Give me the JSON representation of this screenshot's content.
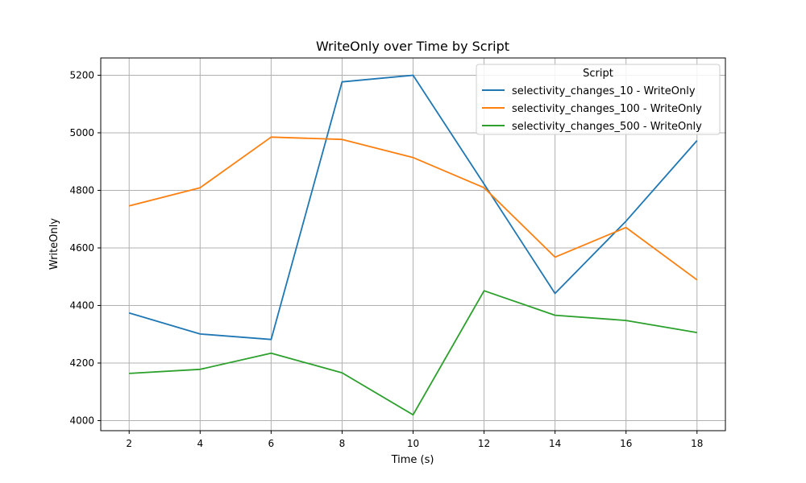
{
  "chart_data": {
    "type": "line",
    "title": "WriteOnly over Time by Script",
    "xlabel": "Time (s)",
    "ylabel": "WriteOnly",
    "x": [
      2,
      4,
      6,
      8,
      10,
      12,
      14,
      16,
      18
    ],
    "xlim": [
      1.2,
      18.8
    ],
    "ylim": [
      3965,
      5260
    ],
    "xticks": [
      2,
      4,
      6,
      8,
      10,
      12,
      14,
      16,
      18
    ],
    "yticks": [
      4000,
      4200,
      4400,
      4600,
      4800,
      5000,
      5200
    ],
    "grid": true,
    "legend": {
      "title": "Script",
      "placement": "top-right"
    },
    "series": [
      {
        "name": "selectivity_changes_10 - WriteOnly",
        "color": "#1f77b4",
        "values": [
          4374,
          4301,
          4282,
          5177,
          5200,
          4822,
          4442,
          4693,
          4973
        ]
      },
      {
        "name": "selectivity_changes_100 - WriteOnly",
        "color": "#ff7f0e",
        "values": [
          4746,
          4809,
          4985,
          4977,
          4914,
          4809,
          4568,
          4671,
          4489
        ]
      },
      {
        "name": "selectivity_changes_500 - WriteOnly",
        "color": "#2ca02c",
        "values": [
          4164,
          4178,
          4234,
          4166,
          4020,
          4451,
          4366,
          4348,
          4306
        ]
      }
    ]
  }
}
